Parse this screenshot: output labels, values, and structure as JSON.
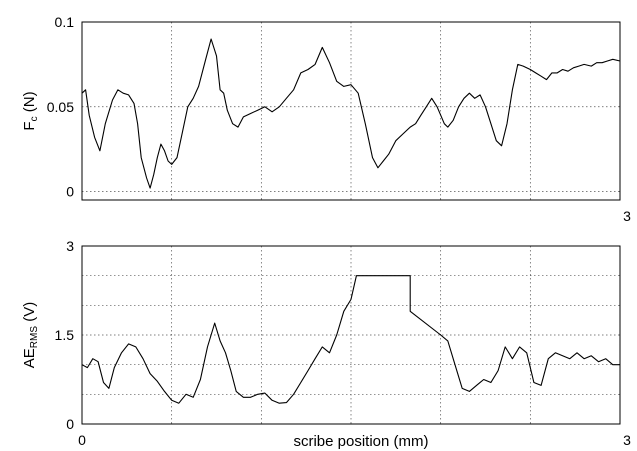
{
  "chart_data": [
    {
      "type": "line",
      "ylabel_main": "F",
      "ylabel_sub": "c",
      "ylabel_unit": " (N)",
      "xlim": [
        0,
        3
      ],
      "ylim": [
        -0.005,
        0.1
      ],
      "yticks": [
        0,
        0.05,
        0.1
      ],
      "ytick_labels": [
        "0",
        "0.05",
        "0.1"
      ],
      "xticks": [
        0,
        0.5,
        1,
        1.5,
        2,
        2.5,
        3
      ],
      "xtick_labels": [
        "",
        "",
        "",
        "",
        "",
        "",
        "3"
      ],
      "grid": true,
      "series": [
        {
          "x": [
            0,
            0.02,
            0.04,
            0.07,
            0.1,
            0.13,
            0.17,
            0.2,
            0.23,
            0.26,
            0.29,
            0.31,
            0.33,
            0.36,
            0.38,
            0.4,
            0.42,
            0.44,
            0.46,
            0.48,
            0.5,
            0.53,
            0.56,
            0.59,
            0.62,
            0.65,
            0.69,
            0.72,
            0.75,
            0.77,
            0.79,
            0.81,
            0.84,
            0.87,
            0.9,
            0.94,
            0.98,
            1.02,
            1.06,
            1.1,
            1.14,
            1.18,
            1.22,
            1.26,
            1.3,
            1.34,
            1.38,
            1.42,
            1.46,
            1.5,
            1.54,
            1.58,
            1.62,
            1.65,
            1.68,
            1.71,
            1.75,
            1.79,
            1.83,
            1.86,
            1.89,
            1.92,
            1.95,
            1.98,
            2.0,
            2.02,
            2.04,
            2.07,
            2.1,
            2.13,
            2.16,
            2.19,
            2.22,
            2.25,
            2.28,
            2.31,
            2.34,
            2.37,
            2.4,
            2.43,
            2.46,
            2.5,
            2.53,
            2.56,
            2.59,
            2.62,
            2.65,
            2.68,
            2.71,
            2.74,
            2.77,
            2.8,
            2.84,
            2.87,
            2.9,
            2.93,
            2.96,
            3.0
          ],
          "values": [
            0.058,
            0.06,
            0.045,
            0.032,
            0.024,
            0.04,
            0.054,
            0.06,
            0.058,
            0.057,
            0.052,
            0.04,
            0.02,
            0.008,
            0.002,
            0.01,
            0.02,
            0.028,
            0.024,
            0.018,
            0.016,
            0.02,
            0.035,
            0.05,
            0.055,
            0.062,
            0.078,
            0.09,
            0.08,
            0.06,
            0.058,
            0.048,
            0.04,
            0.038,
            0.044,
            0.046,
            0.048,
            0.05,
            0.047,
            0.05,
            0.055,
            0.06,
            0.07,
            0.072,
            0.075,
            0.085,
            0.076,
            0.065,
            0.062,
            0.063,
            0.058,
            0.04,
            0.02,
            0.014,
            0.018,
            0.022,
            0.03,
            0.034,
            0.038,
            0.04,
            0.045,
            0.05,
            0.055,
            0.05,
            0.045,
            0.04,
            0.038,
            0.042,
            0.05,
            0.055,
            0.058,
            0.055,
            0.057,
            0.05,
            0.04,
            0.03,
            0.027,
            0.04,
            0.06,
            0.075,
            0.074,
            0.072,
            0.07,
            0.068,
            0.066,
            0.07,
            0.07,
            0.072,
            0.071,
            0.073,
            0.074,
            0.075,
            0.074,
            0.076,
            0.076,
            0.077,
            0.078,
            0.077
          ]
        }
      ]
    },
    {
      "type": "line",
      "ylabel_main": "AE",
      "ylabel_sub": "RMS",
      "ylabel_unit": " (V)",
      "xlabel": "scribe position (mm)",
      "xlim": [
        0,
        3
      ],
      "ylim": [
        0,
        3
      ],
      "yticks": [
        0,
        1.5,
        3
      ],
      "ytick_labels": [
        "0",
        "1.5",
        "3"
      ],
      "ygrid": [
        0,
        0.5,
        1,
        1.5,
        2,
        2.5,
        3
      ],
      "xticks": [
        0,
        0.5,
        1,
        1.5,
        2,
        2.5,
        3
      ],
      "xtick_labels": [
        "0",
        "",
        "",
        "",
        "",
        "",
        "3"
      ],
      "grid": true,
      "series": [
        {
          "x": [
            0,
            0.03,
            0.06,
            0.09,
            0.12,
            0.15,
            0.18,
            0.22,
            0.26,
            0.3,
            0.34,
            0.38,
            0.42,
            0.46,
            0.5,
            0.54,
            0.58,
            0.62,
            0.66,
            0.7,
            0.74,
            0.77,
            0.8,
            0.83,
            0.86,
            0.9,
            0.94,
            0.98,
            1.02,
            1.06,
            1.1,
            1.14,
            1.18,
            1.22,
            1.26,
            1.3,
            1.34,
            1.38,
            1.42,
            1.46,
            1.5,
            1.53,
            1.56,
            1.59,
            1.62,
            1.65,
            1.7,
            1.75,
            1.8,
            1.83,
            1.83,
            2.0,
            2.0,
            2.04,
            2.08,
            2.12,
            2.16,
            2.2,
            2.24,
            2.28,
            2.32,
            2.36,
            2.4,
            2.44,
            2.48,
            2.52,
            2.56,
            2.6,
            2.64,
            2.68,
            2.72,
            2.76,
            2.8,
            2.84,
            2.88,
            2.92,
            2.96,
            3.0
          ],
          "values": [
            1.0,
            0.95,
            1.1,
            1.05,
            0.7,
            0.6,
            0.95,
            1.2,
            1.35,
            1.3,
            1.1,
            0.85,
            0.72,
            0.55,
            0.4,
            0.35,
            0.5,
            0.45,
            0.75,
            1.3,
            1.7,
            1.4,
            1.2,
            0.9,
            0.55,
            0.45,
            0.45,
            0.5,
            0.52,
            0.4,
            0.35,
            0.36,
            0.5,
            0.7,
            0.9,
            1.1,
            1.3,
            1.2,
            1.5,
            1.9,
            2.1,
            2.5,
            2.5,
            2.5,
            2.5,
            2.5,
            2.5,
            2.5,
            2.5,
            2.5,
            1.9,
            1.5,
            1.5,
            1.4,
            1.0,
            0.6,
            0.55,
            0.65,
            0.75,
            0.7,
            0.9,
            1.3,
            1.1,
            1.3,
            1.2,
            0.7,
            0.65,
            1.1,
            1.2,
            1.15,
            1.1,
            1.2,
            1.1,
            1.15,
            1.05,
            1.1,
            1.0,
            1.0
          ]
        }
      ]
    }
  ]
}
